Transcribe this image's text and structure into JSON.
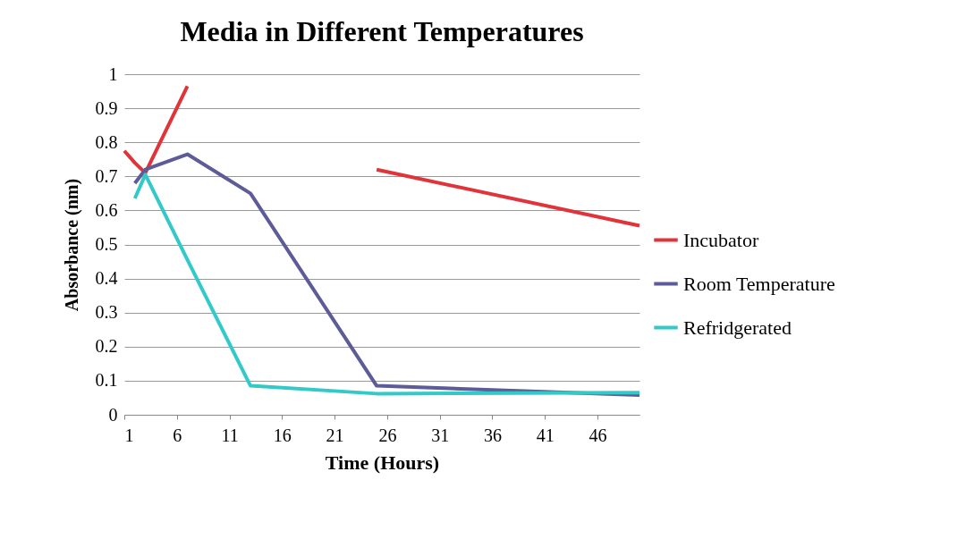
{
  "chart_data": {
    "type": "line",
    "title": "Media in Different Temperatures",
    "xlabel": "Time (Hours)",
    "ylabel": "Absorbance (nm)",
    "xlim": [
      1,
      50
    ],
    "xticks": [
      1,
      6,
      11,
      16,
      21,
      26,
      31,
      36,
      41,
      46
    ],
    "ylim": [
      0,
      1
    ],
    "yticks": [
      0,
      0.1,
      0.2,
      0.3,
      0.4,
      0.5,
      0.6,
      0.7,
      0.8,
      0.9,
      1
    ],
    "grid": "y",
    "legend": "right",
    "marker": "none",
    "line_style": "solid",
    "series": [
      {
        "name": "Incubator",
        "color": "#e0343a",
        "x": [
          1,
          2,
          3,
          7,
          13,
          25,
          50
        ],
        "values": [
          0.775,
          0.74,
          0.71,
          0.965,
          null,
          0.72,
          0.555
        ]
      },
      {
        "name": "Room Temperature",
        "color": "#5e5b99",
        "x": [
          2,
          3,
          7,
          13,
          25,
          50
        ],
        "values": [
          0.68,
          0.72,
          0.765,
          0.65,
          0.085,
          0.058
        ]
      },
      {
        "name": "Refridgerated",
        "color": "#33c9c9",
        "x": [
          2,
          3,
          7,
          13,
          25,
          50
        ],
        "values": [
          0.635,
          0.705,
          0.455,
          0.085,
          0.062,
          0.065
        ]
      }
    ]
  }
}
